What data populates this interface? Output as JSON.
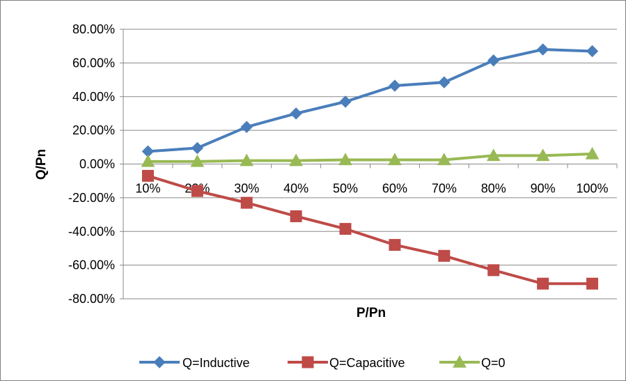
{
  "chart_data": {
    "type": "line",
    "title": "",
    "xlabel": "P/Pn",
    "ylabel": "Q/Pn",
    "categories": [
      "10%",
      "20%",
      "30%",
      "40%",
      "50%",
      "60%",
      "70%",
      "80%",
      "90%",
      "100%"
    ],
    "ylim": [
      -80,
      80
    ],
    "y_tick_values": [
      80,
      60,
      40,
      20,
      0,
      -20,
      -40,
      -60,
      -80
    ],
    "y_tick_labels": [
      "80.00%",
      "60.00%",
      "40.00%",
      "20.00%",
      "0.00%",
      "-20.00%",
      "-40.00%",
      "-60.00%",
      "-80.00%"
    ],
    "grid": "horizontal",
    "legend_position": "bottom",
    "series": [
      {
        "name": "Q=Inductive",
        "color": "#4a7ebb",
        "marker": "diamond",
        "values": [
          7.5,
          9.5,
          22,
          30,
          37,
          46.5,
          48.5,
          61.5,
          68,
          67
        ]
      },
      {
        "name": "Q=Capacitive",
        "color": "#be4b48",
        "marker": "square",
        "values": [
          -7,
          -16,
          -23,
          -31,
          -38.5,
          -48,
          -54.5,
          -63,
          -71,
          -71
        ]
      },
      {
        "name": "Q=0",
        "color": "#98b954",
        "marker": "triangle",
        "values": [
          1.5,
          1.5,
          2,
          2,
          2.5,
          2.5,
          2.5,
          5,
          5,
          6
        ]
      }
    ]
  }
}
